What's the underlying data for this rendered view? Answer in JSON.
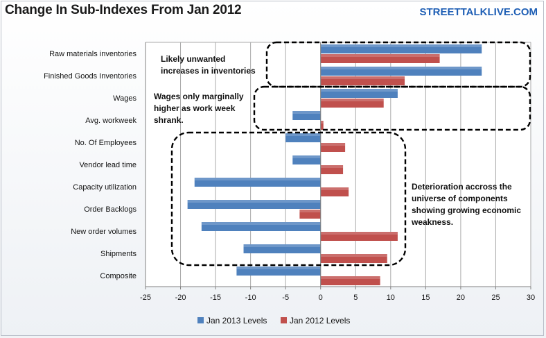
{
  "header": {
    "title": "Change In Sub-Indexes From Jan 2012",
    "brand": "STREETTALKLIVE.COM"
  },
  "chart_data": {
    "type": "bar",
    "orientation": "horizontal",
    "categories": [
      "Raw materials inventories",
      "Finished Goods Inventories",
      "Wages",
      "Avg. workweek",
      "No. Of Employees",
      "Vendor lead time",
      "Capacity utilization",
      "Order Backlogs",
      "New order volumes",
      "Shipments",
      "Composite"
    ],
    "series": [
      {
        "name": "Jan 2013 Levels",
        "color": "#4f81bd",
        "values": [
          23,
          23,
          11,
          -4,
          -5,
          -4,
          -18,
          -19,
          -17,
          -11,
          -12
        ]
      },
      {
        "name": "Jan 2012 Levels",
        "color": "#c0504d",
        "values": [
          17,
          12,
          9,
          0.4,
          3.5,
          3.2,
          4,
          -3,
          11,
          9.5,
          8.5
        ]
      }
    ],
    "xlim": [
      -25,
      30
    ],
    "xticks": [
      -25,
      -20,
      -15,
      -10,
      -5,
      0,
      5,
      10,
      15,
      20,
      25,
      30
    ],
    "grid": true,
    "legend": "bottom",
    "annotations": [
      {
        "lines": [
          "Likely unwanted",
          "increases in inventories"
        ]
      },
      {
        "lines": [
          "Wages only marginally",
          "higher as work week",
          "shrank."
        ]
      },
      {
        "lines": [
          "Deterioration accross the",
          "universe of components",
          "showing growing economic",
          "weakness."
        ]
      }
    ]
  }
}
